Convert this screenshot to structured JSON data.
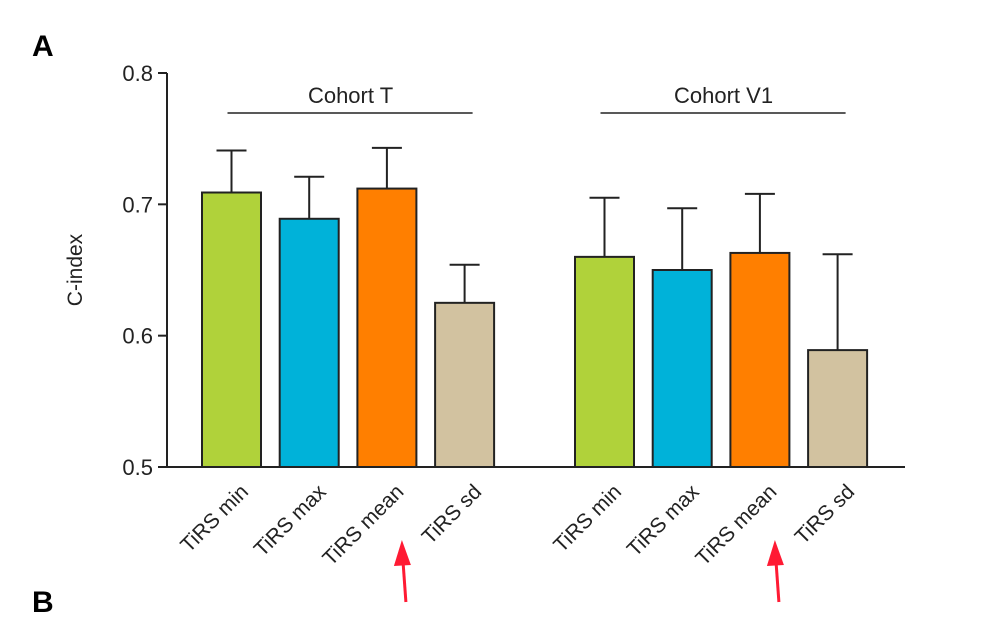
{
  "panel_labels": {
    "top": "A",
    "bottom": "B"
  },
  "chart_data": {
    "type": "bar",
    "ylabel": "C-index",
    "xlabel": "",
    "ylim": [
      0.5,
      0.8
    ],
    "yticks": [
      0.5,
      0.6,
      0.7,
      0.8
    ],
    "ytick_labels": [
      "0.5",
      "0.6",
      "0.7",
      "0.8"
    ],
    "grid": false,
    "colors": {
      "TiRS min": "#b0d23a",
      "TiRS max": "#00b2d9",
      "TiRS mean": "#ff7f00",
      "TiRS sd": "#d2c2a0"
    },
    "groups": [
      {
        "name": "Cohort T",
        "categories": [
          "TiRS min",
          "TiRS max",
          "TiRS mean",
          "TiRS sd"
        ],
        "values": [
          0.709,
          0.689,
          0.712,
          0.625
        ],
        "error_upper": [
          0.741,
          0.721,
          0.743,
          0.654
        ],
        "highlight": "TiRS mean"
      },
      {
        "name": "Cohort V1",
        "categories": [
          "TiRS min",
          "TiRS max",
          "TiRS mean",
          "TiRS sd"
        ],
        "values": [
          0.66,
          0.65,
          0.663,
          0.589
        ],
        "error_upper": [
          0.705,
          0.697,
          0.708,
          0.662
        ],
        "highlight": "TiRS mean"
      }
    ]
  }
}
